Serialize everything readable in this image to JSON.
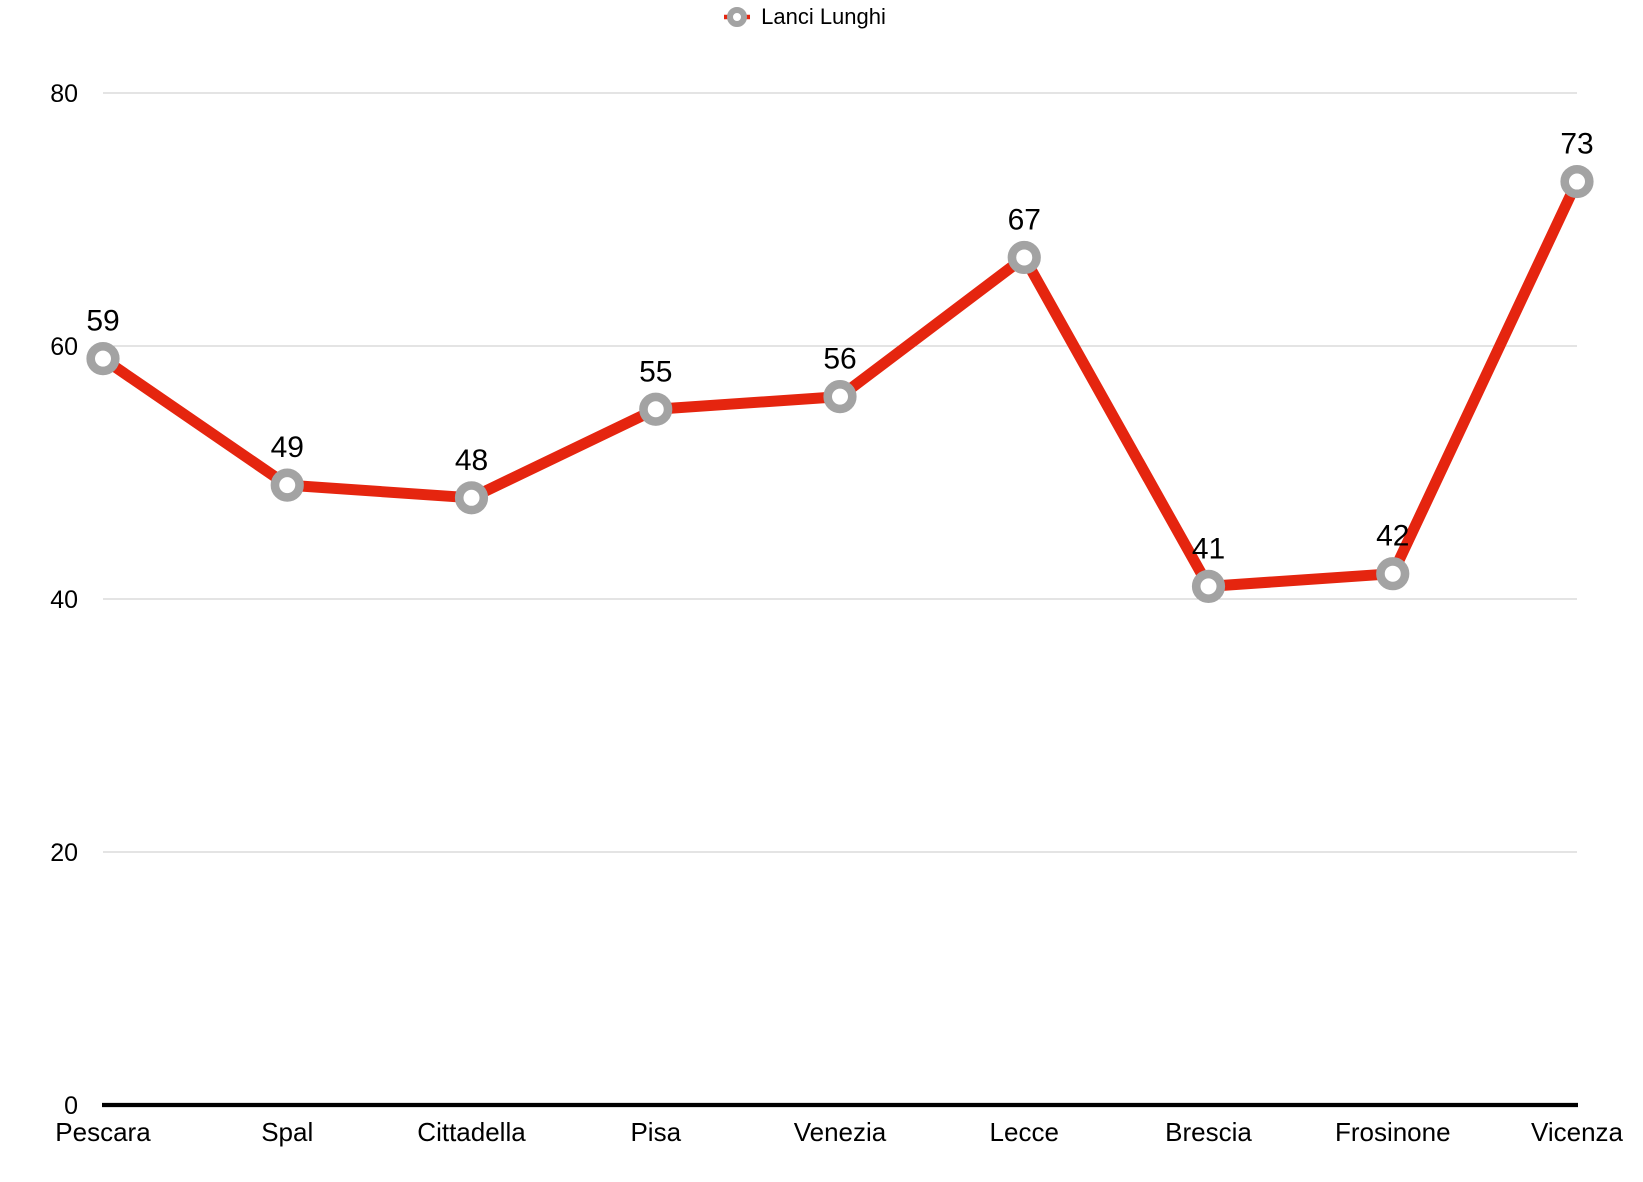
{
  "legend": {
    "label": "Lanci Lunghi"
  },
  "chart_data": {
    "type": "line",
    "title": "",
    "xlabel": "",
    "ylabel": "",
    "categories": [
      "Pescara",
      "Spal",
      "Cittadella",
      "Pisa",
      "Venezia",
      "Lecce",
      "Brescia",
      "Frosinone",
      "Vicenza"
    ],
    "series": [
      {
        "name": "Lanci Lunghi",
        "values": [
          59,
          49,
          48,
          55,
          56,
          67,
          41,
          42,
          73
        ],
        "color": "#e5250f",
        "marker_color": "#a3a3a3",
        "marker_style": "donut",
        "data_labels": true
      }
    ],
    "ylim": [
      0,
      80
    ],
    "yticks": [
      0,
      20,
      40,
      60,
      80
    ],
    "grid": true,
    "legend_position": "top-center",
    "axis_color": "#000000",
    "gridline_color": "#c9c9c9",
    "label_color": "#000000"
  }
}
